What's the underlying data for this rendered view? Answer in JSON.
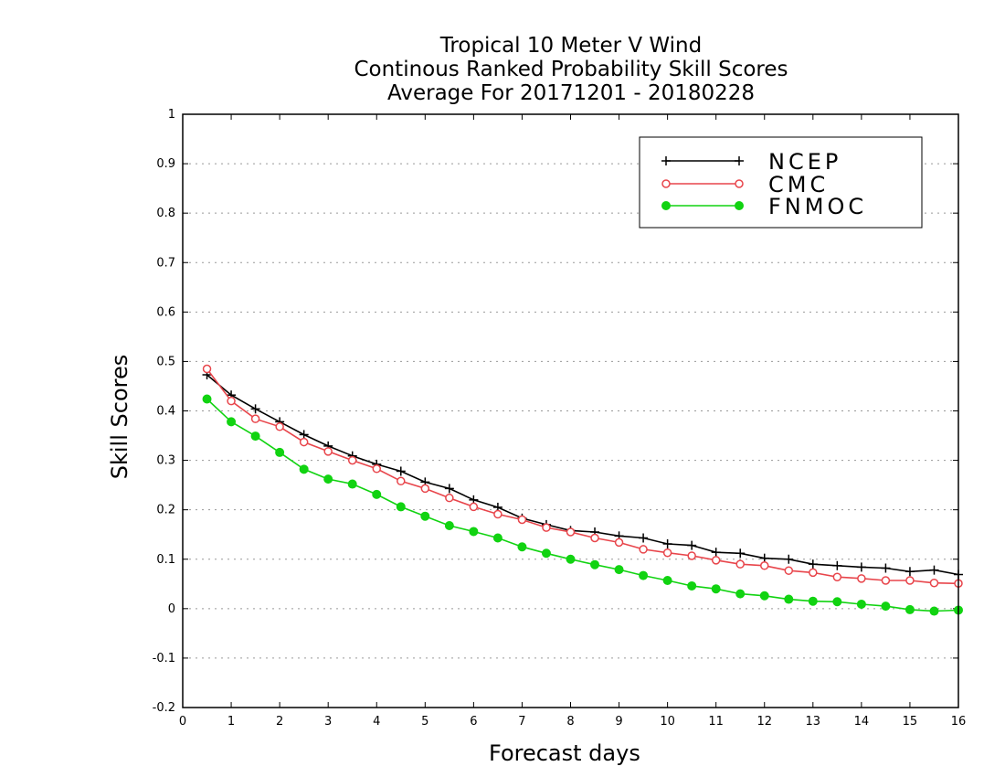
{
  "chart_data": {
    "type": "line",
    "title_lines": [
      "Tropical 10 Meter V Wind",
      "Continous Ranked Probability Skill Scores",
      "Average For 20171201 - 20180228"
    ],
    "xlabel": "Forecast days",
    "ylabel": "Skill Scores",
    "xlim": [
      0,
      16
    ],
    "ylim": [
      -0.2,
      1
    ],
    "xticks": [
      "0",
      "1",
      "2",
      "3",
      "4",
      "5",
      "6",
      "7",
      "8",
      "9",
      "10",
      "11",
      "12",
      "13",
      "14",
      "15",
      "16"
    ],
    "yticks": [
      "-0.2",
      "-0.1",
      "0",
      "0.1",
      "0.2",
      "0.3",
      "0.4",
      "0.5",
      "0.6",
      "0.7",
      "0.8",
      "0.9",
      "1"
    ],
    "grid": "horizontal-dotted",
    "legend_position": "top-right",
    "x": [
      0.5,
      1,
      1.5,
      2,
      2.5,
      3,
      3.5,
      4,
      4.5,
      5,
      5.5,
      6,
      6.5,
      7,
      7.5,
      8,
      8.5,
      9,
      9.5,
      10,
      10.5,
      11,
      11.5,
      12,
      12.5,
      13,
      13.5,
      14,
      14.5,
      15,
      15.5,
      16
    ],
    "series": [
      {
        "name": "NCEP",
        "color": "#000000",
        "marker": "plus",
        "values": [
          0.473,
          0.432,
          0.404,
          0.378,
          0.352,
          0.329,
          0.309,
          0.292,
          0.278,
          0.256,
          0.243,
          0.22,
          0.205,
          0.183,
          0.17,
          0.158,
          0.155,
          0.147,
          0.143,
          0.131,
          0.128,
          0.114,
          0.112,
          0.102,
          0.1,
          0.09,
          0.087,
          0.084,
          0.082,
          0.075,
          0.078,
          0.069
        ]
      },
      {
        "name": "CMC",
        "color": "#e8454b",
        "marker": "open-circle",
        "values": [
          0.485,
          0.42,
          0.384,
          0.368,
          0.337,
          0.318,
          0.3,
          0.283,
          0.258,
          0.243,
          0.224,
          0.206,
          0.191,
          0.18,
          0.164,
          0.155,
          0.143,
          0.134,
          0.12,
          0.113,
          0.107,
          0.098,
          0.09,
          0.087,
          0.077,
          0.073,
          0.064,
          0.061,
          0.057,
          0.057,
          0.052,
          0.051
        ]
      },
      {
        "name": "FNMOC",
        "color": "#11d311",
        "marker": "filled-circle",
        "values": [
          0.424,
          0.378,
          0.349,
          0.316,
          0.282,
          0.262,
          0.252,
          0.231,
          0.206,
          0.187,
          0.168,
          0.156,
          0.143,
          0.125,
          0.112,
          0.1,
          0.089,
          0.079,
          0.067,
          0.057,
          0.046,
          0.04,
          0.03,
          0.026,
          0.019,
          0.015,
          0.014,
          0.009,
          0.005,
          -0.002,
          -0.005,
          -0.003
        ]
      }
    ]
  }
}
